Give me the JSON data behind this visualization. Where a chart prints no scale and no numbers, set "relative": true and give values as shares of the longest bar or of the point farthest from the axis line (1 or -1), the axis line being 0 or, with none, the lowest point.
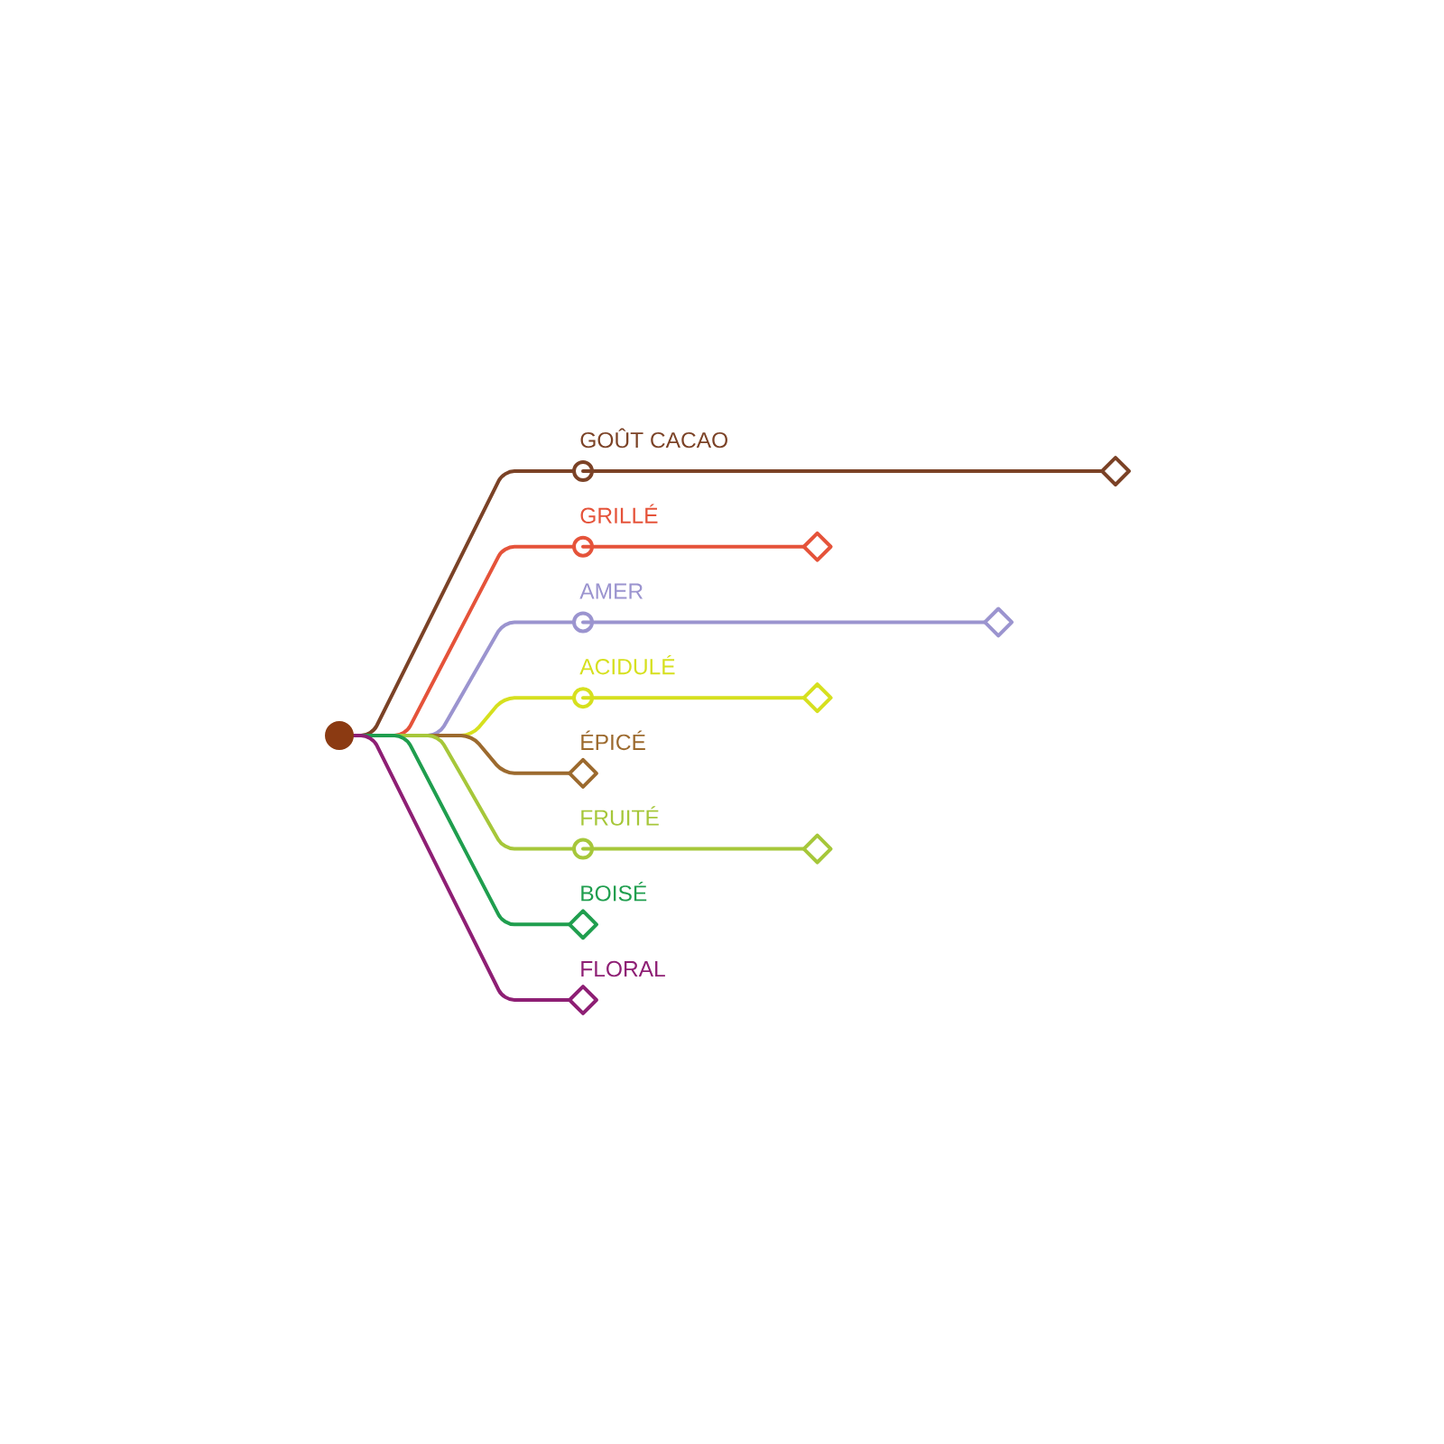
{
  "chart_data": {
    "type": "lollipop",
    "orientation": "horizontal",
    "relative": true,
    "categories": [
      "GOÛT CACAO",
      "GRILLÉ",
      "AMER",
      "ACIDULÉ",
      "ÉPICÉ",
      "FRUITÉ",
      "BOISÉ",
      "FLORAL"
    ],
    "values": [
      1,
      0.44,
      0.78,
      0.44,
      0,
      0.44,
      0,
      0
    ],
    "colors": [
      "#7b4226",
      "#e5533a",
      "#9b94cf",
      "#d6e01e",
      "#9c6a2e",
      "#a6c73a",
      "#1f9e4e",
      "#8e1f74"
    ],
    "marker": "diamond"
  }
}
